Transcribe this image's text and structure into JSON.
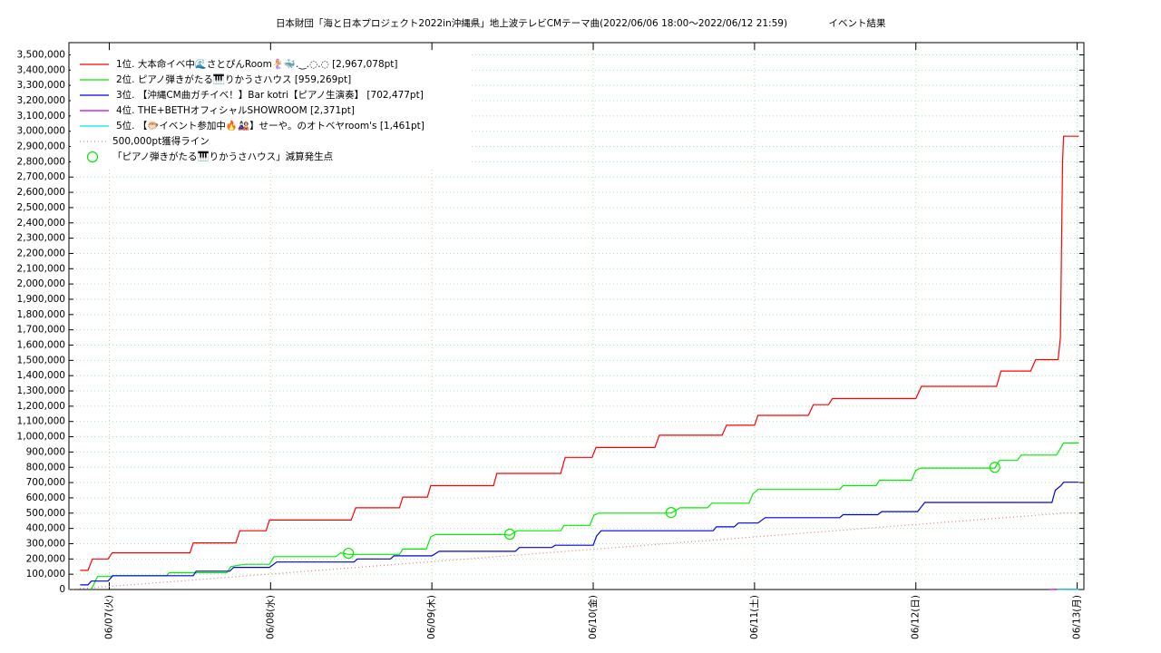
{
  "chart_data": {
    "type": "line",
    "title": "日本財団「海と日本プロジェクト2022in沖縄県」地上波テレビCMテーマ曲(2022/06/06 18:00～2022/06/12 21:59)",
    "subtitle": "イベント結果",
    "grid": true,
    "legend": "top-left",
    "xlim": [
      "06/06 18:00",
      "06/13 01:00"
    ],
    "xticks": [
      {
        "value": "06/07 00:00",
        "label": "06/07(火)"
      },
      {
        "value": "06/08 00:00",
        "label": "06/08(水)"
      },
      {
        "value": "06/09 00:00",
        "label": "06/09(木)"
      },
      {
        "value": "06/10 00:00",
        "label": "06/10(金)"
      },
      {
        "value": "06/11 00:00",
        "label": "06/11(土)"
      },
      {
        "value": "06/12 00:00",
        "label": "06/12(日)"
      },
      {
        "value": "06/13 00:00",
        "label": "06/13(月)"
      }
    ],
    "ylim": [
      0,
      3580000
    ],
    "yticks": [
      0,
      {
        "value": 100000,
        "label": "100,000"
      },
      {
        "value": 200000,
        "label": "200,000"
      },
      {
        "value": 300000,
        "label": "300,000"
      },
      {
        "value": 400000,
        "label": "400,000"
      },
      {
        "value": 500000,
        "label": "500,000"
      },
      {
        "value": 600000,
        "label": "600,000"
      },
      {
        "value": 700000,
        "label": "700,000"
      },
      {
        "value": 800000,
        "label": "800,000"
      },
      {
        "value": 900000,
        "label": "900,000"
      },
      {
        "value": 1000000,
        "label": "1,000,000"
      },
      {
        "value": 1100000,
        "label": "1,100,000"
      },
      {
        "value": 1200000,
        "label": "1,200,000"
      },
      {
        "value": 1300000,
        "label": "1,300,000"
      },
      {
        "value": 1400000,
        "label": "1,400,000"
      },
      {
        "value": 1500000,
        "label": "1,500,000"
      },
      {
        "value": 1600000,
        "label": "1,600,000"
      },
      {
        "value": 1700000,
        "label": "1,700,000"
      },
      {
        "value": 1800000,
        "label": "1,800,000"
      },
      {
        "value": 1900000,
        "label": "1,900,000"
      },
      {
        "value": 2000000,
        "label": "2,000,000"
      },
      {
        "value": 2100000,
        "label": "2,100,000"
      },
      {
        "value": 2200000,
        "label": "2,200,000"
      },
      {
        "value": 2300000,
        "label": "2,300,000"
      },
      {
        "value": 2400000,
        "label": "2,400,000"
      },
      {
        "value": 2500000,
        "label": "2,500,000"
      },
      {
        "value": 2600000,
        "label": "2,600,000"
      },
      {
        "value": 2700000,
        "label": "2,700,000"
      },
      {
        "value": 2800000,
        "label": "2,800,000"
      },
      {
        "value": 2900000,
        "label": "2,900,000"
      },
      {
        "value": 3000000,
        "label": "3,000,000"
      },
      {
        "value": 3100000,
        "label": "3,100,000"
      },
      {
        "value": 3200000,
        "label": "3,200,000"
      },
      {
        "value": 3300000,
        "label": "3,300,000"
      },
      {
        "value": 3400000,
        "label": "3,400,000"
      },
      {
        "value": 3500000,
        "label": "3,500,000"
      }
    ],
    "series": [
      {
        "name": "1位. 大本命イベ中🌊さとぴんRoom🧜‍♀️🐳.‿.◌.◌ [2,967,078pt]",
        "color": "#ff0000",
        "mark": "line",
        "x": [
          "06/06 19:40",
          "06/06 20:50",
          "06/06 21:30",
          "06/06 23:50",
          "06/07 00:25",
          "06/07 12:00",
          "06/07 12:30",
          "06/07 18:50",
          "06/07 19:25",
          "06/07 23:20",
          "06/07 23:50",
          "06/08 12:00",
          "06/08 12:40",
          "06/08 19:10",
          "06/08 19:40",
          "06/08 23:20",
          "06/08 23:50",
          "06/09 09:10",
          "06/09 09:40",
          "06/09 19:10",
          "06/09 19:50",
          "06/09 23:50",
          "06/10 00:25",
          "06/10 09:10",
          "06/10 09:50",
          "06/10 19:10",
          "06/10 19:50",
          "06/11 00:00",
          "06/11 00:30",
          "06/11 08:00",
          "06/11 08:45",
          "06/11 11:00",
          "06/11 11:35",
          "06/12 00:00",
          "06/12 00:50",
          "06/12 12:00",
          "06/12 12:40",
          "06/12 17:05",
          "06/12 17:50",
          "06/12 21:10",
          "06/12 21:30",
          "06/12 21:50",
          "06/12 21:59",
          "06/13 00:15"
        ],
        "values": [
          125000,
          125000,
          200000,
          200000,
          240000,
          240000,
          305000,
          305000,
          385000,
          385000,
          455000,
          455000,
          535000,
          535000,
          605000,
          605000,
          680000,
          680000,
          760000,
          760000,
          865000,
          865000,
          930000,
          930000,
          1010000,
          1010000,
          1075000,
          1075000,
          1140000,
          1140000,
          1210000,
          1210000,
          1250000,
          1250000,
          1330000,
          1330000,
          1430000,
          1430000,
          1505000,
          1505000,
          1650000,
          2800000,
          2967078,
          2967078
        ]
      },
      {
        "name": "2位. ピアノ弾きがたる🎹りかうさハウス [959,269pt]",
        "color": "#00ee00",
        "mark": "line",
        "x": [
          "06/06 21:20",
          "06/06 22:15",
          "06/07 00:10",
          "06/07 00:25",
          "06/07 08:30",
          "06/07 08:55",
          "06/07 17:30",
          "06/07 18:05",
          "06/07 20:10",
          "06/07 23:50",
          "06/08 00:30",
          "06/08 09:40",
          "06/08 10:25",
          "06/08 11:35",
          "06/08 19:10",
          "06/08 19:40",
          "06/08 23:10",
          "06/08 23:50",
          "06/09 00:30",
          "06/09 10:40",
          "06/09 11:35",
          "06/09 12:40",
          "06/09 19:10",
          "06/09 19:40",
          "06/09 23:30",
          "06/10 00:05",
          "06/10 00:45",
          "06/10 11:35",
          "06/10 12:55",
          "06/10 17:00",
          "06/10 17:40",
          "06/10 23:10",
          "06/10 23:45",
          "06/11 00:30",
          "06/11 12:40",
          "06/11 13:10",
          "06/11 18:05",
          "06/11 18:35",
          "06/11 23:20",
          "06/12 00:00",
          "06/12 00:40",
          "06/12 11:45",
          "06/12 12:25",
          "06/12 15:05",
          "06/12 15:40",
          "06/12 20:55",
          "06/12 21:35",
          "06/12 21:59",
          "06/13 00:15"
        ],
        "values": [
          0,
          85000,
          85000,
          90000,
          90000,
          110000,
          110000,
          150000,
          165000,
          165000,
          215000,
          215000,
          240000,
          230000,
          230000,
          265000,
          265000,
          345000,
          360000,
          360000,
          355000,
          385000,
          385000,
          420000,
          420000,
          485000,
          500000,
          500000,
          535000,
          535000,
          565000,
          565000,
          625000,
          655000,
          655000,
          680000,
          680000,
          715000,
          715000,
          780000,
          795000,
          795000,
          845000,
          845000,
          880000,
          880000,
          930000,
          959269,
          959269
        ]
      },
      {
        "name": "3位. 【沖縄CM曲ガチイベ！】Bar kotri【ピアノ生演奏】 [702,477pt]",
        "color": "#0000dd",
        "mark": "line",
        "x": [
          "06/06 19:40",
          "06/06 20:50",
          "06/06 21:20",
          "06/06 23:50",
          "06/07 00:30",
          "06/07 12:30",
          "06/07 12:55",
          "06/07 17:55",
          "06/07 18:30",
          "06/07 23:50",
          "06/08 00:55",
          "06/08 12:25",
          "06/08 12:55",
          "06/08 17:50",
          "06/08 18:20",
          "06/09 00:00",
          "06/09 01:05",
          "06/09 12:25",
          "06/09 13:00",
          "06/09 17:50",
          "06/09 18:20",
          "06/10 00:00",
          "06/10 00:30",
          "06/10 01:10",
          "06/10 17:50",
          "06/10 18:20",
          "06/10 21:00",
          "06/10 21:35",
          "06/11 00:30",
          "06/11 01:35",
          "06/11 12:40",
          "06/11 13:10",
          "06/11 18:20",
          "06/11 18:55",
          "06/12 00:15",
          "06/12 01:20",
          "06/12 20:15",
          "06/12 20:45",
          "06/12 21:35",
          "06/12 21:59",
          "06/13 00:15"
        ],
        "values": [
          30000,
          30000,
          55000,
          55000,
          90000,
          90000,
          120000,
          120000,
          145000,
          145000,
          180000,
          180000,
          200000,
          200000,
          220000,
          220000,
          250000,
          250000,
          275000,
          275000,
          290000,
          290000,
          350000,
          385000,
          385000,
          410000,
          410000,
          435000,
          435000,
          470000,
          470000,
          490000,
          490000,
          510000,
          510000,
          570000,
          570000,
          650000,
          680000,
          702477,
          702477
        ]
      },
      {
        "name": "4位. THE+BETHオフィシャルSHOWROOM [2,371pt]",
        "color": "#cc00cc",
        "mark": "line",
        "x": [
          "06/12 19:50",
          "06/12 21:30",
          "06/13 00:15"
        ],
        "values": [
          0,
          2371,
          2371
        ]
      },
      {
        "name": "5位. 【🐡イベント参加中🔥🎎】せーや。のオトベヤroom's [1,461pt]",
        "color": "#00e5e5",
        "mark": "line",
        "x": [
          "06/12 21:00",
          "06/12 21:59",
          "06/13 00:15"
        ],
        "values": [
          0,
          1461,
          1461
        ]
      },
      {
        "name": "500,000pt獲得ライン",
        "color": "#d08080",
        "mark": "dotted",
        "x": [
          "06/06 18:00",
          "06/12 22:00",
          "06/13 00:15"
        ],
        "values": [
          0,
          500000,
          500000
        ]
      },
      {
        "name": "「ピアノ弾きがたる🎹りかうさハウス」減算発生点",
        "color": "#00ee00",
        "mark": "circle",
        "x": [
          "06/08 11:35",
          "06/09 11:35",
          "06/10 11:35",
          "06/12 11:45"
        ],
        "values": [
          237000,
          362000,
          504000,
          800000
        ]
      }
    ]
  }
}
